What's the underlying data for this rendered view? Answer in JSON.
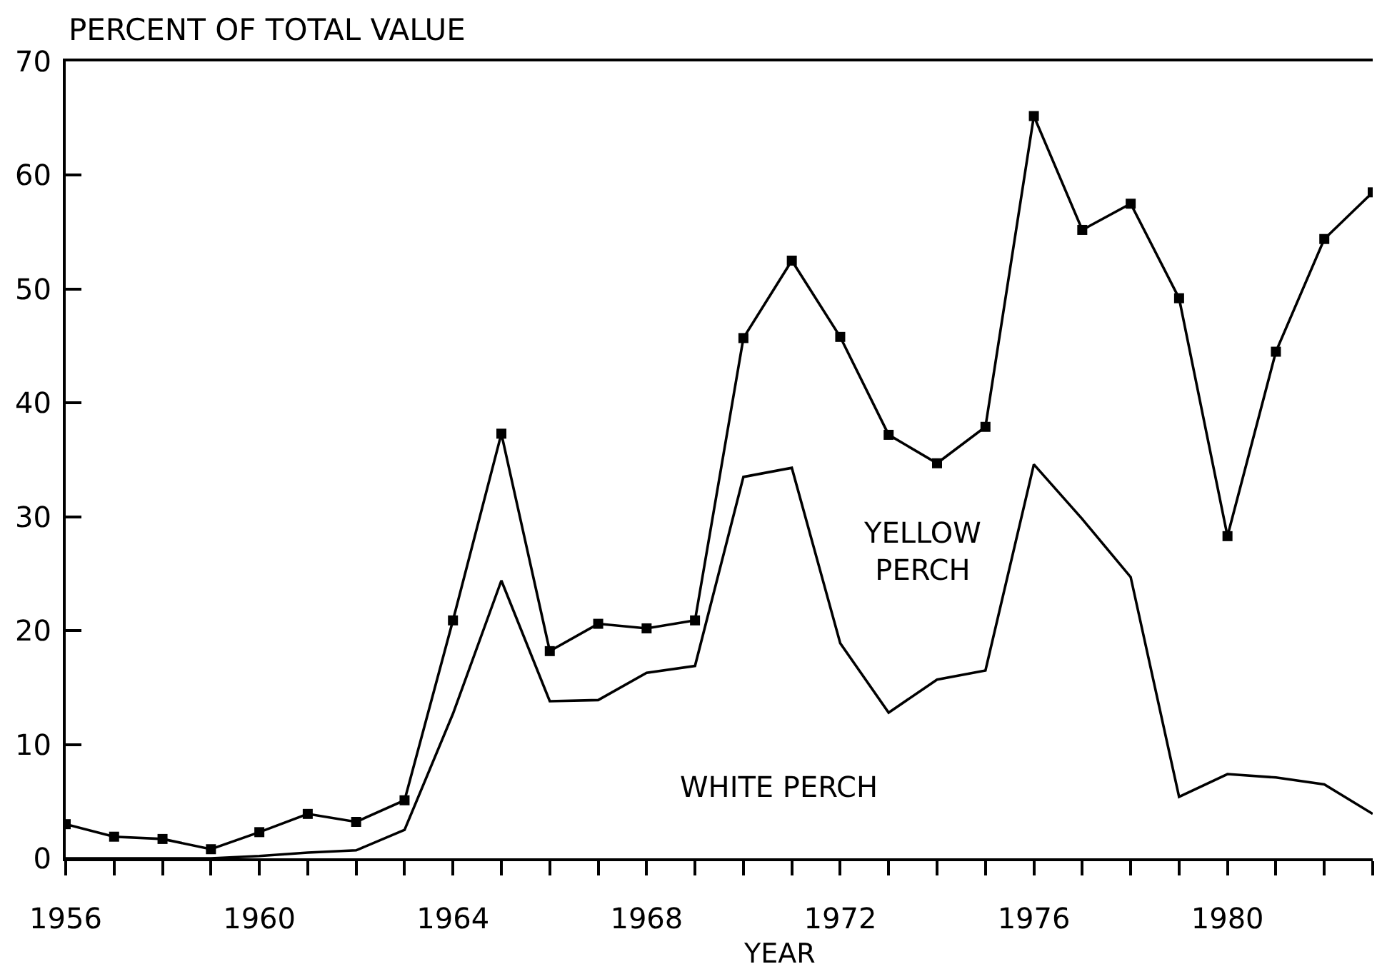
{
  "chart_data": {
    "type": "line",
    "ylabel": "PERCENT OF TOTAL VALUE",
    "xlabel": "YEAR",
    "annotations": [
      "YELLOW PERCH",
      "WHITE PERCH"
    ],
    "x": [
      1956,
      1957,
      1958,
      1959,
      1960,
      1961,
      1962,
      1963,
      1964,
      1965,
      1966,
      1967,
      1968,
      1969,
      1970,
      1971,
      1972,
      1973,
      1974,
      1975,
      1976,
      1977,
      1978,
      1979,
      1980,
      1981,
      1982,
      1983
    ],
    "series": [
      {
        "color": "#000000",
        "marker": "square",
        "values": [
          3.0,
          1.9,
          1.7,
          0.8,
          2.3,
          3.9,
          3.2,
          5.1,
          20.9,
          37.3,
          18.2,
          20.6,
          20.2,
          20.9,
          45.7,
          52.5,
          45.8,
          37.2,
          34.7,
          37.9,
          65.2,
          55.2,
          57.5,
          49.2,
          28.3,
          44.5,
          54.4,
          58.5
        ]
      },
      {
        "color": "#000000",
        "values": [
          0,
          0,
          0,
          0,
          0.2,
          0.5,
          0.7,
          2.5,
          12.7,
          24.4,
          13.8,
          13.9,
          16.3,
          16.9,
          33.5,
          34.3,
          18.9,
          12.8,
          15.7,
          16.5,
          34.6,
          29.8,
          24.7,
          5.4,
          7.4,
          7.1,
          6.5,
          3.9
        ]
      }
    ],
    "xlim": [
      1956,
      1983
    ],
    "xticks": [
      1956,
      {
        "value": 1957,
        "label": null
      },
      {
        "value": 1958,
        "label": null
      },
      {
        "value": 1959,
        "label": null
      },
      1960,
      {
        "value": 1961,
        "label": null
      },
      {
        "value": 1962,
        "label": null
      },
      {
        "value": 1963,
        "label": null
      },
      1964,
      {
        "value": 1965,
        "label": null
      },
      {
        "value": 1966,
        "label": null
      },
      {
        "value": 1967,
        "label": null
      },
      1968,
      {
        "value": 1969,
        "label": null
      },
      {
        "value": 1970,
        "label": null
      },
      {
        "value": 1971,
        "label": null
      },
      1972,
      {
        "value": 1973,
        "label": null
      },
      {
        "value": 1974,
        "label": null
      },
      {
        "value": 1975,
        "label": null
      },
      1976,
      {
        "value": 1977,
        "label": null
      },
      {
        "value": 1978,
        "label": null
      },
      {
        "value": 1979,
        "label": null
      },
      1980,
      {
        "value": 1981,
        "label": null
      },
      {
        "value": 1982,
        "label": null
      },
      {
        "value": 1983,
        "label": null
      }
    ],
    "ylim": [
      0,
      70
    ],
    "yticks": [
      0,
      10,
      20,
      30,
      40,
      50,
      60,
      70
    ],
    "grid": false,
    "line_style": "solid"
  }
}
